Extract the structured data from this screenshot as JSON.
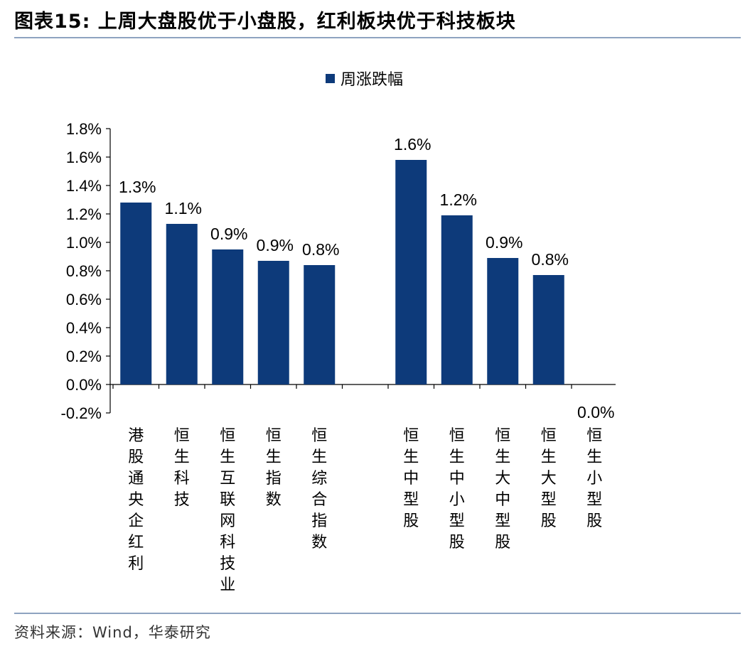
{
  "header": {
    "title": "图表15:  上周大盘股优于小盘股，红利板块优于科技板块"
  },
  "footer": {
    "source": "资料来源：Wind，华泰研究"
  },
  "colors": {
    "bar": "#0d3a7a",
    "rule": "#8ea3c0"
  },
  "chart_data": {
    "type": "bar",
    "title": "",
    "xlabel": "",
    "ylabel": "",
    "ylim": [
      -0.2,
      1.8
    ],
    "yticks": [
      "1.8%",
      "1.6%",
      "1.4%",
      "1.2%",
      "1.0%",
      "0.8%",
      "0.6%",
      "0.4%",
      "0.2%",
      "0.0%",
      "-0.2%"
    ],
    "grid": false,
    "legend_position": "top-center",
    "series": [
      {
        "name": "周涨跌幅",
        "color": "#0d3a7a",
        "categories": [
          "港股通央企红利",
          "恒生科技",
          "恒生互联网科技业",
          "恒生指数",
          "恒生综合指数",
          "",
          "恒生中型股",
          "恒生中小型股",
          "恒生大中型股",
          "恒生大型股",
          "恒生小型股"
        ],
        "values": [
          1.28,
          1.13,
          0.95,
          0.87,
          0.84,
          null,
          1.58,
          1.19,
          0.89,
          0.77,
          0.0
        ],
        "labels": [
          "1.3%",
          "1.1%",
          "0.9%",
          "0.9%",
          "0.8%",
          "",
          "1.6%",
          "1.2%",
          "0.9%",
          "0.8%",
          "0.0%"
        ]
      }
    ]
  }
}
